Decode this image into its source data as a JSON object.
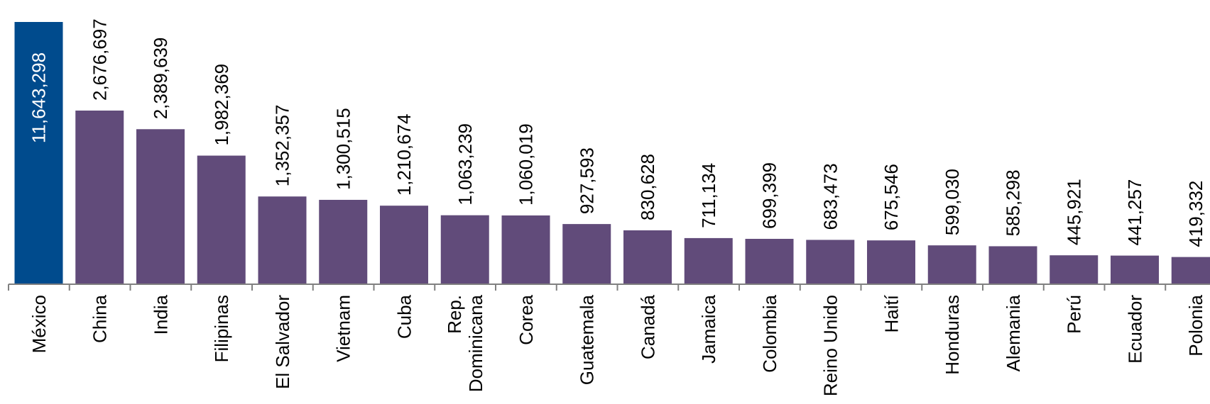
{
  "chart_data": {
    "type": "bar",
    "categories": [
      "México",
      "China",
      "India",
      "Filipinas",
      "El Salvador",
      "Vietnam",
      "Cuba",
      "Rep. Dominicana",
      "Corea",
      "Guatemala",
      "Canadá",
      "Jamaica",
      "Colombia",
      "Reino Unido",
      "Haití",
      "Honduras",
      "Alemania",
      "Perú",
      "Ecuador",
      "Polonia"
    ],
    "category_lines": [
      [
        "México"
      ],
      [
        "China"
      ],
      [
        "India"
      ],
      [
        "Filipinas"
      ],
      [
        "El Salvador"
      ],
      [
        "Vietnam"
      ],
      [
        "Cuba"
      ],
      [
        "Rep.",
        "Dominicana"
      ],
      [
        "Corea"
      ],
      [
        "Guatemala"
      ],
      [
        "Canadá"
      ],
      [
        "Jamaica"
      ],
      [
        "Colombia"
      ],
      [
        "Reino Unido"
      ],
      [
        "Haití"
      ],
      [
        "Honduras"
      ],
      [
        "Alemania"
      ],
      [
        "Perú"
      ],
      [
        "Ecuador"
      ],
      [
        "Polonia"
      ]
    ],
    "values": [
      11643298,
      2676697,
      2389639,
      1982369,
      1352357,
      1300515,
      1210674,
      1063239,
      1060019,
      927593,
      830628,
      711134,
      699399,
      683473,
      675546,
      599030,
      585298,
      445921,
      441257,
      419332
    ],
    "value_labels": [
      "11,643,298",
      "2,676,697",
      "2,389,639",
      "1,982,369",
      "1,352,357",
      "1,300,515",
      "1,210,674",
      "1,063,239",
      "1,060,019",
      "927,593",
      "830,628",
      "711,134",
      "699,399",
      "683,473",
      "675,546",
      "599,030",
      "585,298",
      "445,921",
      "441,257",
      "419,332"
    ],
    "highlight_index": 0,
    "axis_break_on_first_bar": true,
    "colors": {
      "highlight": "#004b8d",
      "bar": "#614b7a",
      "axis": "#808080"
    },
    "title": "",
    "xlabel": "",
    "ylabel": "",
    "grid": false,
    "legend": "none"
  }
}
